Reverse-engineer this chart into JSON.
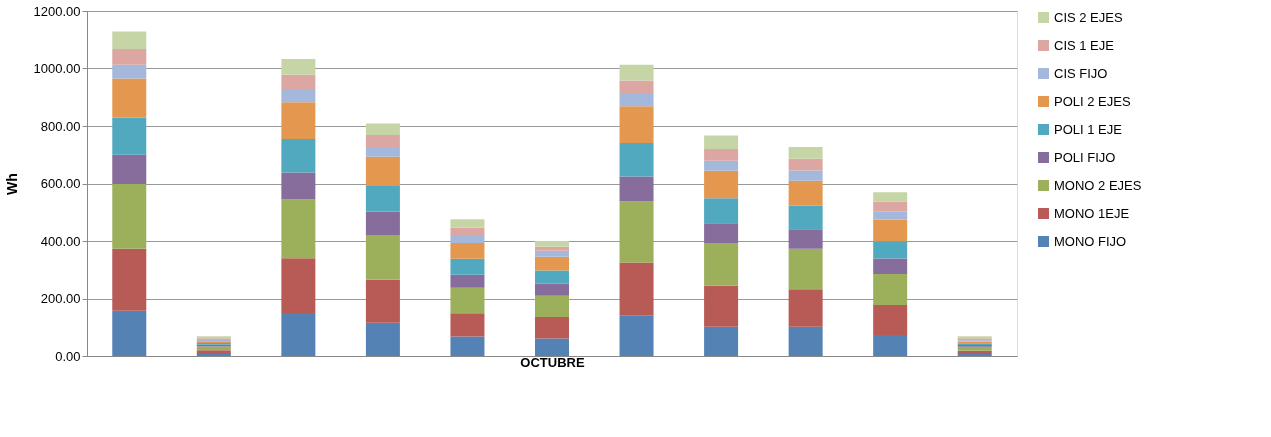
{
  "chart_data": {
    "type": "bar",
    "stacked": true,
    "xlabel": "OCTUBRE",
    "ylabel": "Wh",
    "categories": [
      null,
      null,
      null,
      null,
      null,
      null,
      null,
      null,
      null,
      null,
      null
    ],
    "series": [
      {
        "name": "MONO FIJO",
        "color": "#5482b5",
        "values": [
          157,
          7,
          150,
          116,
          68,
          61,
          142,
          102,
          102,
          73,
          7
        ]
      },
      {
        "name": "MONO 1EJE",
        "color": "#b85a55",
        "values": [
          216,
          13,
          190,
          149,
          81,
          75,
          183,
          142,
          130,
          104,
          11
        ]
      },
      {
        "name": "MONO 2 EJES",
        "color": "#9cb05c",
        "values": [
          225,
          13,
          204,
          156,
          88,
          74,
          212,
          149,
          141,
          108,
          14
        ]
      },
      {
        "name": "POLI FIJO",
        "color": "#866d9c",
        "values": [
          102,
          6,
          94,
          82,
          46,
          41,
          87,
          69,
          68,
          54,
          6
        ]
      },
      {
        "name": "POLI 1 EJE",
        "color": "#51a9bf",
        "values": [
          129,
          6,
          117,
          88,
          55,
          46,
          117,
          87,
          82,
          60,
          6
        ]
      },
      {
        "name": "POLI 2 EJES",
        "color": "#e4974f",
        "values": [
          136,
          6,
          128,
          102,
          55,
          48,
          128,
          95,
          87,
          76,
          6
        ]
      },
      {
        "name": "CIS FIJO",
        "color": "#a3b8db",
        "values": [
          48,
          5,
          42,
          34,
          28,
          21,
          42,
          35,
          35,
          27,
          5
        ]
      },
      {
        "name": "CIS 1 EJE",
        "color": "#dca7a3",
        "values": [
          55,
          6,
          53,
          42,
          26,
          14,
          47,
          41,
          41,
          35,
          7
        ]
      },
      {
        "name": "CIS 2 EJES",
        "color": "#c6d5a6",
        "values": [
          61,
          7,
          55,
          40,
          29,
          20,
          55,
          47,
          41,
          33,
          7
        ]
      }
    ],
    "ylim": [
      0,
      1200
    ],
    "yticks": [
      {
        "value": 0,
        "label": "0.00"
      },
      {
        "value": 200,
        "label": "200.00"
      },
      {
        "value": 400,
        "label": "400.00"
      },
      {
        "value": 600,
        "label": "600.00"
      },
      {
        "value": 800,
        "label": "800.00"
      },
      {
        "value": 1000,
        "label": "1000.00"
      },
      {
        "value": 1200,
        "label": "1200.00"
      }
    ],
    "grid": "y",
    "legend": "right"
  }
}
